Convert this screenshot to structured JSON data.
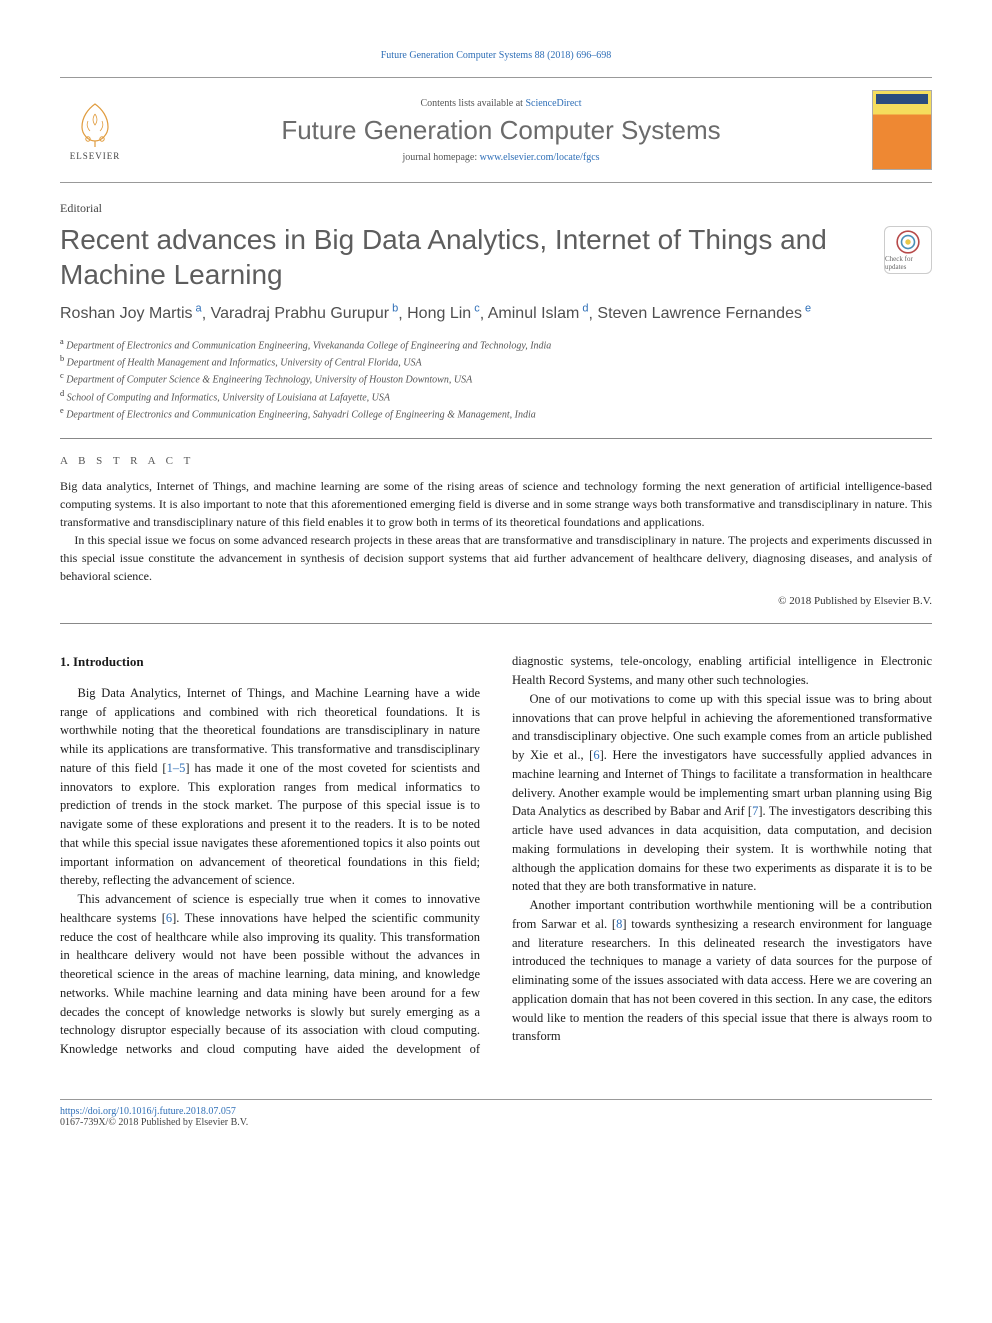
{
  "journal_ref": "Future Generation Computer Systems 88 (2018) 696–698",
  "header": {
    "contents_prefix": "Contents lists available at ",
    "contents_link": "ScienceDirect",
    "journal_title": "Future Generation Computer Systems",
    "homepage_prefix": "journal homepage: ",
    "homepage_link": "www.elsevier.com/locate/fgcs",
    "publisher_name": "ELSEVIER"
  },
  "article": {
    "type": "Editorial",
    "title": "Recent advances in Big Data Analytics, Internet of Things and Machine Learning",
    "crossmark_label": "Check for updates",
    "authors_html": "Roshan Joy Martis|a|, Varadraj Prabhu Gurupur|b|, Hong Lin|c|, Aminul Islam|d|, Steven Lawrence Fernandes|e",
    "authors": [
      {
        "name": "Roshan Joy Martis",
        "aff": "a"
      },
      {
        "name": "Varadraj Prabhu Gurupur",
        "aff": "b"
      },
      {
        "name": "Hong Lin",
        "aff": "c"
      },
      {
        "name": "Aminul Islam",
        "aff": "d"
      },
      {
        "name": "Steven Lawrence Fernandes",
        "aff": "e"
      }
    ],
    "affiliations": [
      {
        "key": "a",
        "text": "Department of Electronics and Communication Engineering, Vivekananda College of Engineering and Technology, India"
      },
      {
        "key": "b",
        "text": "Department of Health Management and Informatics, University of Central Florida, USA"
      },
      {
        "key": "c",
        "text": "Department of Computer Science & Engineering Technology, University of Houston Downtown, USA"
      },
      {
        "key": "d",
        "text": "School of Computing and Informatics, University of Louisiana at Lafayette, USA"
      },
      {
        "key": "e",
        "text": "Department of Electronics and Communication Engineering, Sahyadri College of Engineering & Management, India"
      }
    ]
  },
  "abstract": {
    "label": "A B S T R A C T",
    "paragraphs": [
      "Big data analytics, Internet of Things, and machine learning are some of the rising areas of science and technology forming the next generation of artificial intelligence-based computing systems. It is also important to note that this aforementioned emerging field is diverse and in some strange ways both transformative and transdisciplinary in nature. This transformative and transdisciplinary nature of this field enables it to grow both in terms of its theoretical foundations and applications.",
      "In this special issue we focus on some advanced research projects in these areas that are transformative and transdisciplinary in nature. The projects and experiments discussed in this special issue constitute the advancement in synthesis of decision support systems that aid further advancement of healthcare delivery, diagnosing diseases, and analysis of behavioral science."
    ],
    "copyright": "© 2018 Published by Elsevier B.V."
  },
  "body": {
    "section_heading": "1. Introduction",
    "paragraphs": [
      "Big Data Analytics, Internet of Things, and Machine Learning have a wide range of applications and combined with rich theoretical foundations. It is worthwhile noting that the theoretical foundations are transdisciplinary in nature while its applications are transformative. This transformative and transdisciplinary nature of this field [1–5] has made it one of the most coveted for scientists and innovators to explore. This exploration ranges from medical informatics to prediction of trends in the stock market. The purpose of this special issue is to navigate some of these explorations and present it to the readers. It is to be noted that while this special issue navigates these aforementioned topics it also points out important information on advancement of theoretical foundations in this field; thereby, reflecting the advancement of science.",
      "This advancement of science is especially true when it comes to innovative healthcare systems [6]. These innovations have helped the scientific community reduce the cost of healthcare while also improving its quality. This transformation in healthcare delivery would not have been possible without the advances in theoretical science in the areas of machine learning, data mining, and knowledge networks. While machine learning and data mining have been around for a few decades the concept of knowledge networks is slowly but surely emerging as a technology disruptor especially because of its association with cloud computing. Knowledge networks and cloud computing have aided the development of diagnostic systems, tele-oncology, enabling artificial intelligence in Electronic Health Record Systems, and many other such technologies.",
      "One of our motivations to come up with this special issue was to bring about innovations that can prove helpful in achieving the aforementioned transformative and transdisciplinary objective. One such example comes from an article published by Xie et al., [6]. Here the investigators have successfully applied advances in machine learning and Internet of Things to facilitate a transformation in healthcare delivery. Another example would be implementing smart urban planning using Big Data Analytics as described by Babar and Arif [7]. The investigators describing this article have used advances in data acquisition, data computation, and decision making formulations in developing their system. It is worthwhile noting that although the application domains for these two experiments as disparate it is to be noted that they are both transformative in nature.",
      "Another important contribution worthwhile mentioning will be a contribution from Sarwar et al. [8] towards synthesizing a research environment for language and literature researchers. In this delineated research the investigators have introduced the techniques to manage a variety of data sources for the purpose of eliminating some of the issues associated with data access. Here we are covering an application domain that has not been covered in this section. In any case, the editors would like to mention the readers of this special issue that there is always room to transform"
    ]
  },
  "footer": {
    "doi": "https://doi.org/10.1016/j.future.2018.07.057",
    "issn_line": "0167-739X/© 2018 Published by Elsevier B.V."
  },
  "colors": {
    "link": "#2f6fb7",
    "heading_gray": "#5d5d5d",
    "body_text": "#1a1a1a",
    "rule": "#888888"
  }
}
